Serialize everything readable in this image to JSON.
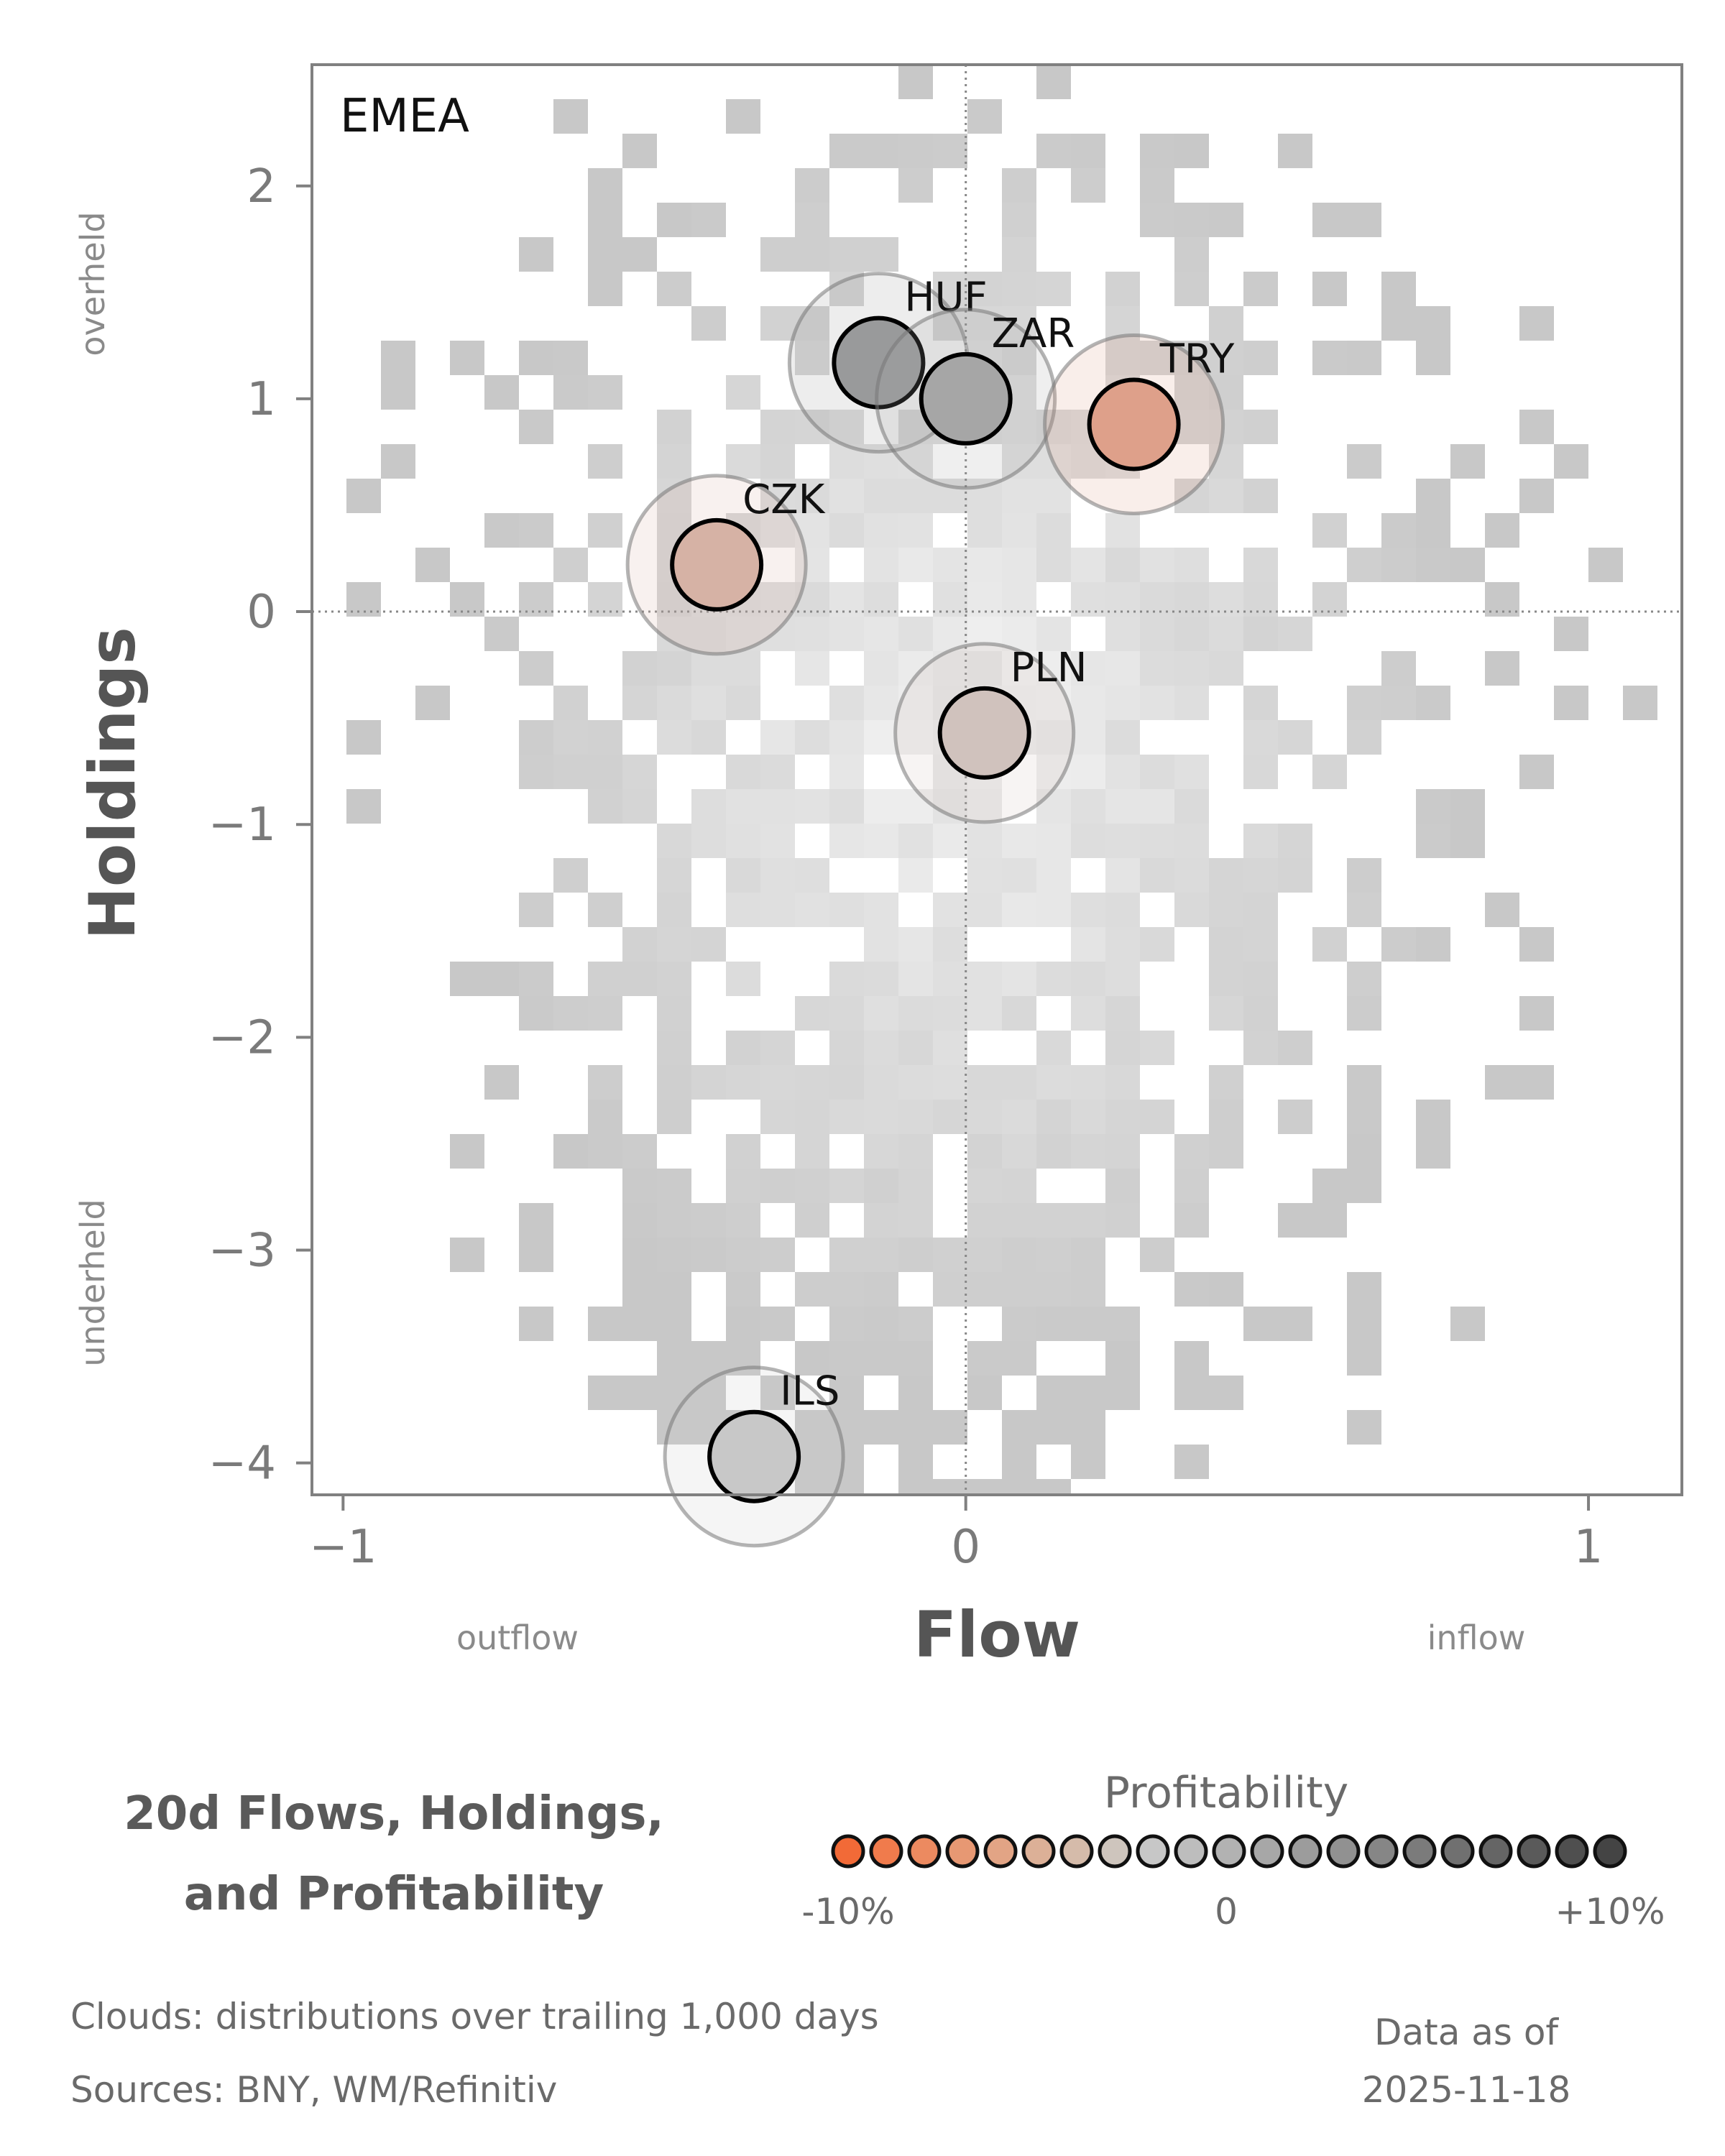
{
  "chart_data": {
    "type": "scatter",
    "panel_label": "EMEA",
    "xlabel": "Flow",
    "ylabel": "Holdings",
    "x_ticks": [
      "−1",
      "0",
      "1"
    ],
    "y_ticks": [
      "2",
      "1",
      "0",
      "−1",
      "−2",
      "−3",
      "−4"
    ],
    "xlim": [
      -1.05,
      1.15
    ],
    "ylim": [
      -4.15,
      2.57
    ],
    "x_side_labels": {
      "left": "outflow",
      "right": "inflow"
    },
    "y_side_labels": {
      "top": "overheld",
      "bottom": "underheld"
    },
    "reference_lines": {
      "x": 0,
      "y": 0
    },
    "background": "gray density cloud (distributions over trailing 1,000 days)",
    "points": [
      {
        "label": "HUF",
        "x": -0.14,
        "y": 1.17,
        "color": "#999a9b"
      },
      {
        "label": "ZAR",
        "x": 0.0,
        "y": 1.0,
        "color": "#a6a6a6"
      },
      {
        "label": "TRY",
        "x": 0.27,
        "y": 0.88,
        "color": "#dea08a"
      },
      {
        "label": "CZK",
        "x": -0.4,
        "y": 0.22,
        "color": "#d6b2a5"
      },
      {
        "label": "PLN",
        "x": 0.03,
        "y": -0.57,
        "color": "#d0c2bd"
      },
      {
        "label": "ILS",
        "x": -0.34,
        "y": -3.97,
        "color": "#c8c8c8"
      }
    ],
    "legend": {
      "title": "Profitability",
      "min_label": "-10%",
      "mid_label": "0",
      "max_label": "+10%",
      "colors": [
        "#f26a37",
        "#f07b4c",
        "#ec8a60",
        "#e79873",
        "#e2a485",
        "#dcb097",
        "#d5bbaa",
        "#cec5bd",
        "#c7c7c7",
        "#bdbdbd",
        "#b2b2b2",
        "#a7a7a7",
        "#9c9c9c",
        "#919191",
        "#868686",
        "#7b7b7b",
        "#707070",
        "#656565",
        "#5a5a5a",
        "#4f4f4f",
        "#444444"
      ]
    }
  },
  "footer": {
    "title_line1": "20d Flows, Holdings,",
    "title_line2": "and Profitability",
    "clouds_note": "Clouds:  distributions over trailing 1,000 days",
    "sources_note": "Sources:  BNY, WM/Refinitiv",
    "asof_line1": "Data as of",
    "asof_line2": "2025-11-18"
  }
}
